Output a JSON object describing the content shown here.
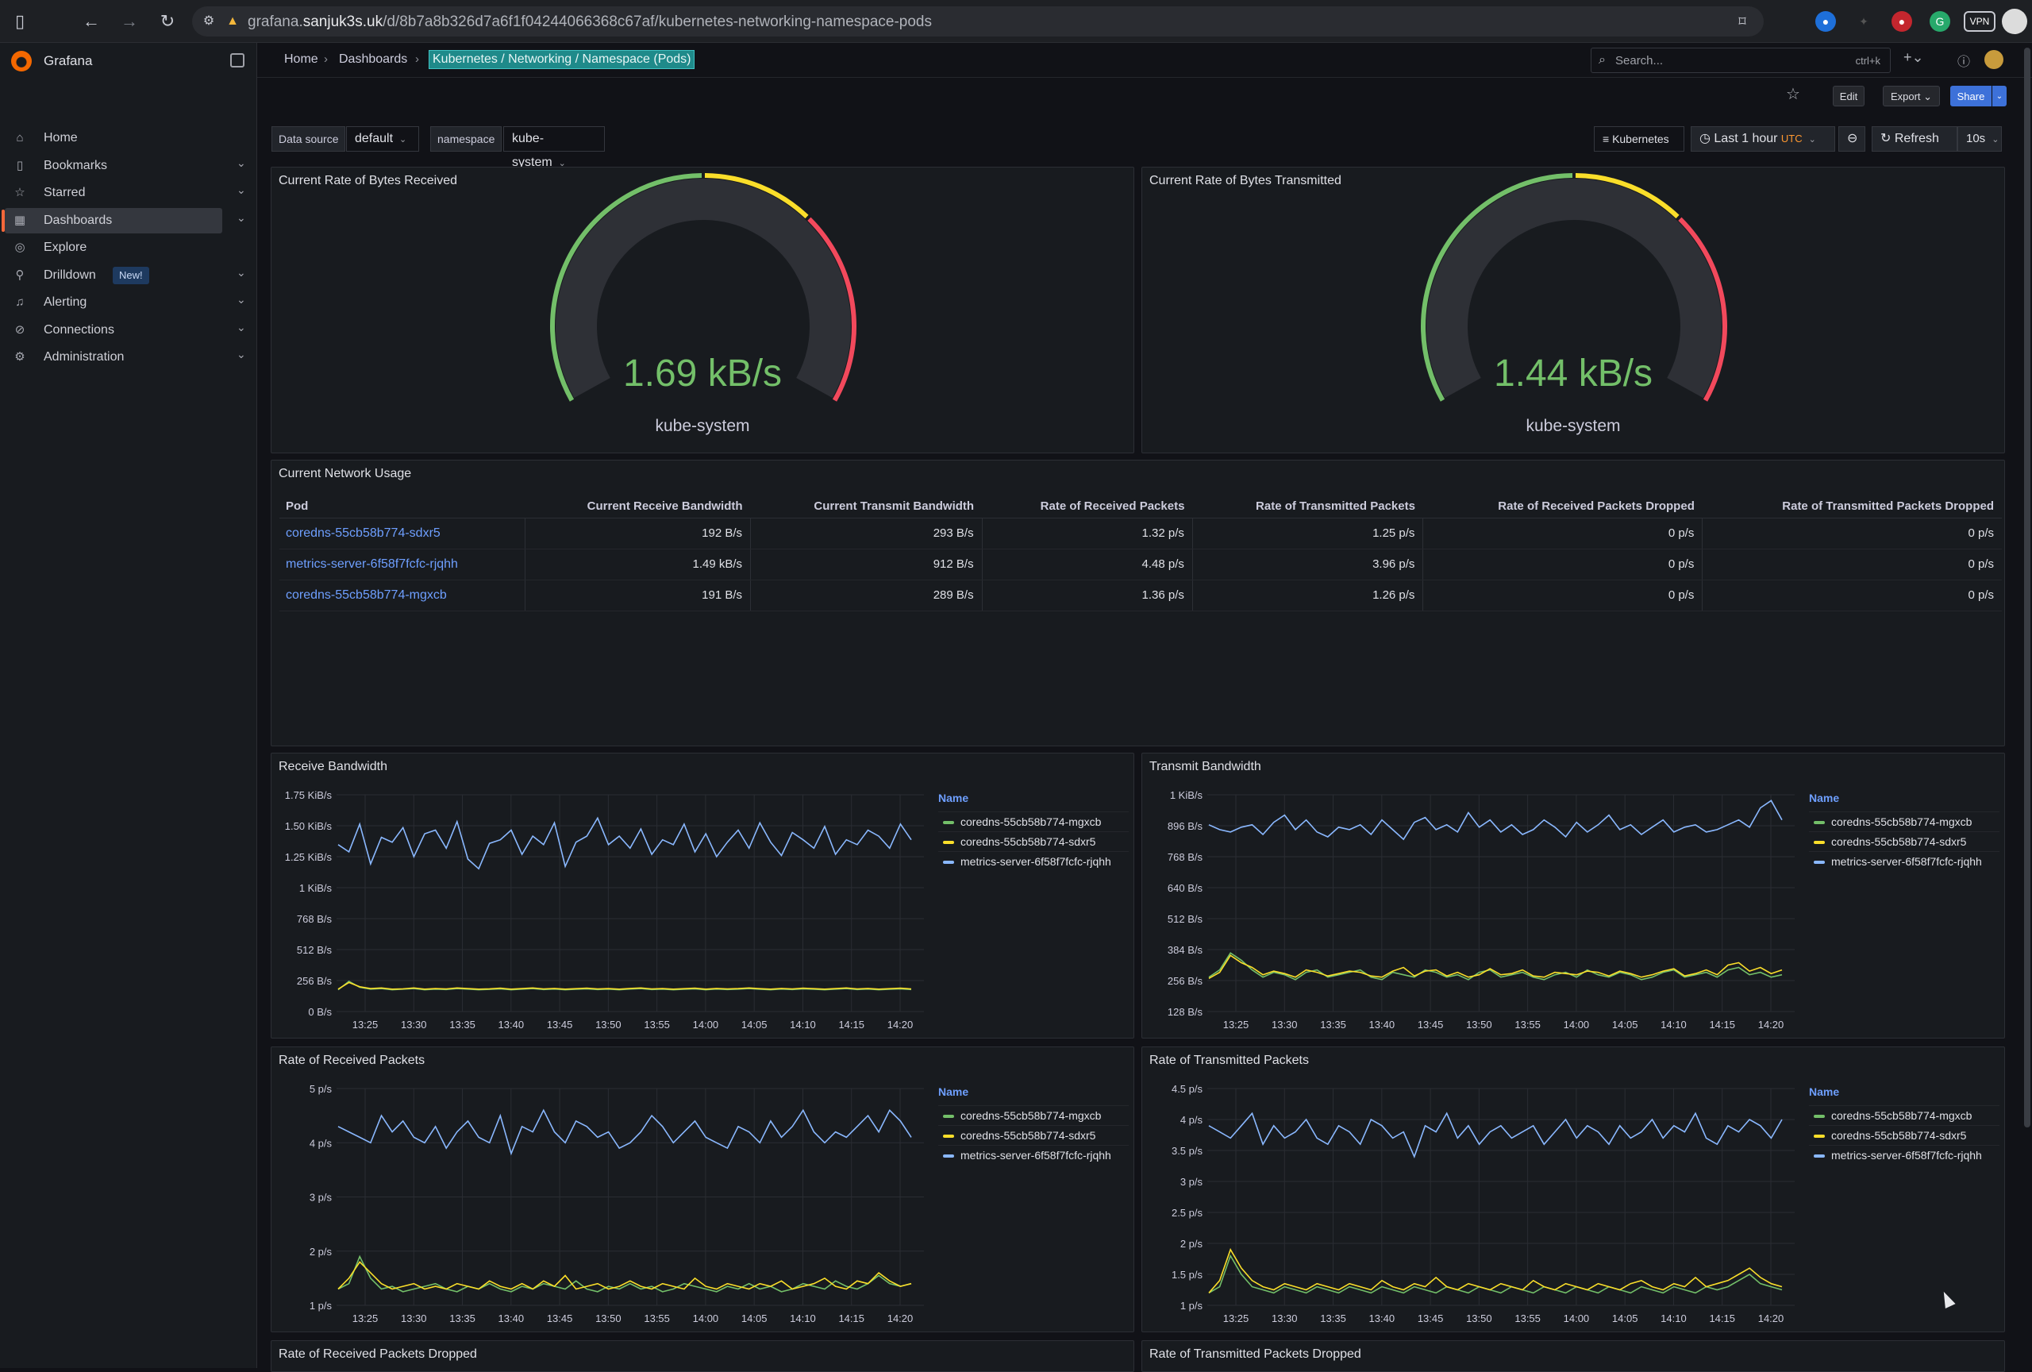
{
  "browser": {
    "url_prefix": "grafana.",
    "url_host": "sanjuk3s.uk",
    "url_path": "/d/8b7a8b326d7a6f1f04244066368c67af/kubernetes-networking-namespace-pods",
    "vpn_label": "VPN"
  },
  "sidebar": {
    "brand": "Grafana",
    "items": [
      {
        "label": "Home",
        "icon": "home-icon",
        "chev": false
      },
      {
        "label": "Bookmarks",
        "icon": "bookmark-icon",
        "chev": true
      },
      {
        "label": "Starred",
        "icon": "star-icon",
        "chev": true
      },
      {
        "label": "Dashboards",
        "icon": "grid-icon",
        "chev": true,
        "active": true
      },
      {
        "label": "Explore",
        "icon": "compass-icon",
        "chev": false
      },
      {
        "label": "Drilldown",
        "icon": "drilldown-icon",
        "chev": true,
        "badge": "New!"
      },
      {
        "label": "Alerting",
        "icon": "bell-icon",
        "chev": true
      },
      {
        "label": "Connections",
        "icon": "plug-icon",
        "chev": true
      },
      {
        "label": "Administration",
        "icon": "gear-icon",
        "chev": true
      }
    ]
  },
  "breadcrumb": {
    "home": "Home",
    "dashboards": "Dashboards",
    "current": "Kubernetes / Networking / Namespace (Pods)"
  },
  "search": {
    "placeholder": "Search...",
    "shortcut": "ctrl+k"
  },
  "toolbar": {
    "edit": "Edit",
    "export": "Export",
    "share": "Share"
  },
  "variables": {
    "datasource_label": "Data source",
    "datasource_value": "default",
    "namespace_label": "namespace",
    "namespace_value": "kube-system",
    "link_label": "Kubernetes",
    "time_range": "Last 1 hour",
    "tz": "UTC",
    "refresh_label": "Refresh",
    "refresh_interval": "10s"
  },
  "colors": {
    "green": "#73bf69",
    "yellow": "#fade2a",
    "blue": "#8ab8ff",
    "red": "#f2495c"
  },
  "gauges": [
    {
      "title": "Current Rate of Bytes Received",
      "value": "1.69 kB/s",
      "label": "kube-system"
    },
    {
      "title": "Current Rate of Bytes Transmitted",
      "value": "1.44 kB/s",
      "label": "kube-system"
    }
  ],
  "usage_table": {
    "title": "Current Network Usage",
    "headers": [
      "Pod",
      "Current Receive Bandwidth",
      "Current Transmit Bandwidth",
      "Rate of Received Packets",
      "Rate of Transmitted Packets",
      "Rate of Received Packets Dropped",
      "Rate of Transmitted Packets Dropped"
    ],
    "rows": [
      [
        "coredns-55cb58b774-sdxr5",
        "192 B/s",
        "293 B/s",
        "1.32 p/s",
        "1.25 p/s",
        "0 p/s",
        "0 p/s"
      ],
      [
        "metrics-server-6f58f7fcfc-rjqhh",
        "1.49 kB/s",
        "912 B/s",
        "4.48 p/s",
        "3.96 p/s",
        "0 p/s",
        "0 p/s"
      ],
      [
        "coredns-55cb58b774-mgxcb",
        "191 B/s",
        "289 B/s",
        "1.36 p/s",
        "1.26 p/s",
        "0 p/s",
        "0 p/s"
      ]
    ]
  },
  "legend": {
    "header": "Name",
    "series": [
      "coredns-55cb58b774-mgxcb",
      "coredns-55cb58b774-sdxr5",
      "metrics-server-6f58f7fcfc-rjqhh"
    ]
  },
  "chart_data": [
    {
      "type": "line",
      "title": "Receive Bandwidth",
      "x_ticks": [
        "13:25",
        "13:30",
        "13:35",
        "13:40",
        "13:45",
        "13:50",
        "13:55",
        "14:00",
        "14:05",
        "14:10",
        "14:15",
        "14:20"
      ],
      "y_ticks": [
        "0 B/s",
        "256 B/s",
        "512 B/s",
        "768 B/s",
        "1 KiB/s",
        "1.25 KiB/s",
        "1.50 KiB/s",
        "1.75 KiB/s"
      ],
      "ylim": [
        0,
        1792
      ],
      "series": [
        {
          "name": "coredns-55cb58b774-mgxcb",
          "color": "#73bf69",
          "values": [
            180,
            250,
            200,
            185,
            190,
            180,
            185,
            190,
            180,
            185,
            182,
            190,
            185,
            180,
            183,
            188,
            180,
            185,
            190,
            182,
            186,
            180,
            184,
            188,
            182,
            185,
            180,
            186,
            190,
            182,
            185,
            180,
            184,
            188,
            180,
            186,
            182,
            185,
            190,
            184,
            180,
            186,
            182,
            188,
            184,
            180,
            185,
            190,
            182,
            186,
            180,
            184,
            188,
            182
          ]
        },
        {
          "name": "coredns-55cb58b774-sdxr5",
          "color": "#fade2a",
          "values": [
            185,
            240,
            205,
            190,
            195,
            185,
            188,
            195,
            185,
            190,
            187,
            195,
            190,
            185,
            188,
            193,
            185,
            190,
            195,
            187,
            191,
            185,
            189,
            193,
            187,
            190,
            185,
            191,
            195,
            187,
            190,
            185,
            189,
            193,
            185,
            191,
            187,
            190,
            195,
            189,
            185,
            191,
            187,
            193,
            189,
            185,
            190,
            195,
            187,
            191,
            185,
            189,
            193,
            187
          ]
        },
        {
          "name": "metrics-server-6f58f7fcfc-rjqhh",
          "color": "#8ab8ff",
          "values": [
            1380,
            1320,
            1550,
            1220,
            1440,
            1400,
            1520,
            1280,
            1470,
            1500,
            1350,
            1570,
            1260,
            1180,
            1390,
            1420,
            1500,
            1300,
            1450,
            1380,
            1560,
            1200,
            1400,
            1450,
            1600,
            1380,
            1450,
            1350,
            1510,
            1300,
            1420,
            1380,
            1550,
            1320,
            1470,
            1280,
            1400,
            1500,
            1350,
            1560,
            1400,
            1290,
            1480,
            1420,
            1350,
            1530,
            1300,
            1420,
            1380,
            1500,
            1450,
            1350,
            1550,
            1420
          ]
        }
      ]
    },
    {
      "type": "line",
      "title": "Transmit Bandwidth",
      "x_ticks": [
        "13:25",
        "13:30",
        "13:35",
        "13:40",
        "13:45",
        "13:50",
        "13:55",
        "14:00",
        "14:05",
        "14:10",
        "14:15",
        "14:20"
      ],
      "y_ticks": [
        "128 B/s",
        "256 B/s",
        "384 B/s",
        "512 B/s",
        "640 B/s",
        "768 B/s",
        "896 B/s",
        "1 KiB/s"
      ],
      "ylim": [
        128,
        1024
      ],
      "series": [
        {
          "name": "coredns-55cb58b774-mgxcb",
          "color": "#73bf69",
          "values": [
            270,
            300,
            370,
            340,
            300,
            270,
            290,
            280,
            260,
            290,
            300,
            270,
            280,
            290,
            300,
            270,
            260,
            290,
            280,
            270,
            300,
            290,
            270,
            280,
            260,
            290,
            300,
            270,
            280,
            290,
            270,
            260,
            280,
            290,
            270,
            300,
            280,
            270,
            290,
            280,
            260,
            270,
            290,
            300,
            270,
            280,
            290,
            270,
            300,
            310,
            280,
            290,
            270,
            280
          ]
        },
        {
          "name": "coredns-55cb58b774-sdxr5",
          "color": "#fade2a",
          "values": [
            265,
            290,
            360,
            330,
            310,
            280,
            295,
            285,
            270,
            300,
            290,
            275,
            285,
            295,
            290,
            275,
            270,
            295,
            310,
            275,
            295,
            300,
            275,
            290,
            270,
            280,
            305,
            280,
            285,
            300,
            275,
            270,
            290,
            285,
            280,
            295,
            290,
            275,
            295,
            285,
            270,
            280,
            295,
            305,
            275,
            285,
            300,
            280,
            320,
            330,
            295,
            310,
            285,
            300
          ]
        },
        {
          "name": "metrics-server-6f58f7fcfc-rjqhh",
          "color": "#8ab8ff",
          "values": [
            900,
            880,
            870,
            890,
            900,
            860,
            910,
            940,
            880,
            920,
            870,
            850,
            890,
            880,
            900,
            860,
            920,
            880,
            840,
            910,
            930,
            880,
            900,
            870,
            950,
            890,
            920,
            870,
            900,
            860,
            880,
            920,
            890,
            850,
            910,
            870,
            900,
            940,
            880,
            900,
            860,
            890,
            920,
            870,
            890,
            900,
            870,
            880,
            900,
            920,
            890,
            970,
            1000,
            920
          ]
        }
      ]
    },
    {
      "type": "line",
      "title": "Rate of Received Packets",
      "x_ticks": [
        "13:25",
        "13:30",
        "13:35",
        "13:40",
        "13:45",
        "13:50",
        "13:55",
        "14:00",
        "14:05",
        "14:10",
        "14:15",
        "14:20"
      ],
      "y_ticks": [
        "1 p/s",
        "2 p/s",
        "3 p/s",
        "4 p/s",
        "5 p/s"
      ],
      "ylim": [
        1,
        5
      ],
      "series": [
        {
          "name": "coredns-55cb58b774-mgxcb",
          "color": "#73bf69",
          "values": [
            1.3,
            1.4,
            1.9,
            1.5,
            1.3,
            1.35,
            1.25,
            1.3,
            1.35,
            1.4,
            1.3,
            1.25,
            1.35,
            1.3,
            1.4,
            1.3,
            1.25,
            1.35,
            1.3,
            1.4,
            1.35,
            1.3,
            1.45,
            1.3,
            1.25,
            1.35,
            1.3,
            1.4,
            1.3,
            1.35,
            1.25,
            1.3,
            1.4,
            1.35,
            1.3,
            1.25,
            1.35,
            1.3,
            1.4,
            1.3,
            1.35,
            1.25,
            1.3,
            1.4,
            1.35,
            1.3,
            1.45,
            1.35,
            1.3,
            1.4,
            1.55,
            1.4,
            1.35,
            1.4
          ]
        },
        {
          "name": "coredns-55cb58b774-sdxr5",
          "color": "#fade2a",
          "values": [
            1.3,
            1.5,
            1.8,
            1.6,
            1.4,
            1.3,
            1.35,
            1.4,
            1.3,
            1.35,
            1.3,
            1.4,
            1.35,
            1.3,
            1.45,
            1.35,
            1.3,
            1.4,
            1.3,
            1.45,
            1.35,
            1.55,
            1.3,
            1.35,
            1.4,
            1.3,
            1.35,
            1.45,
            1.35,
            1.3,
            1.4,
            1.35,
            1.3,
            1.5,
            1.35,
            1.3,
            1.4,
            1.35,
            1.3,
            1.4,
            1.35,
            1.45,
            1.3,
            1.35,
            1.4,
            1.5,
            1.35,
            1.3,
            1.45,
            1.4,
            1.6,
            1.45,
            1.35,
            1.4
          ]
        },
        {
          "name": "metrics-server-6f58f7fcfc-rjqhh",
          "color": "#8ab8ff",
          "values": [
            4.3,
            4.2,
            4.1,
            4.0,
            4.5,
            4.2,
            4.4,
            4.1,
            4.0,
            4.3,
            3.9,
            4.2,
            4.4,
            4.1,
            4.0,
            4.5,
            3.8,
            4.3,
            4.2,
            4.6,
            4.2,
            4.0,
            4.4,
            4.3,
            4.1,
            4.2,
            3.9,
            4.0,
            4.2,
            4.5,
            4.3,
            4.0,
            4.2,
            4.4,
            4.1,
            4.0,
            3.9,
            4.3,
            4.2,
            4.0,
            4.4,
            4.1,
            4.3,
            4.6,
            4.2,
            4.0,
            4.2,
            4.1,
            4.3,
            4.5,
            4.2,
            4.6,
            4.4,
            4.1
          ]
        }
      ]
    },
    {
      "type": "line",
      "title": "Rate of Transmitted Packets",
      "x_ticks": [
        "13:25",
        "13:30",
        "13:35",
        "13:40",
        "13:45",
        "13:50",
        "13:55",
        "14:00",
        "14:05",
        "14:10",
        "14:15",
        "14:20"
      ],
      "y_ticks": [
        "1 p/s",
        "1.5 p/s",
        "2 p/s",
        "2.5 p/s",
        "3 p/s",
        "3.5 p/s",
        "4 p/s",
        "4.5 p/s"
      ],
      "ylim": [
        1,
        4.5
      ],
      "series": [
        {
          "name": "coredns-55cb58b774-mgxcb",
          "color": "#73bf69",
          "values": [
            1.2,
            1.3,
            1.8,
            1.5,
            1.3,
            1.25,
            1.2,
            1.3,
            1.25,
            1.2,
            1.3,
            1.25,
            1.2,
            1.3,
            1.25,
            1.2,
            1.3,
            1.25,
            1.2,
            1.3,
            1.25,
            1.2,
            1.3,
            1.25,
            1.2,
            1.3,
            1.25,
            1.2,
            1.3,
            1.25,
            1.2,
            1.3,
            1.25,
            1.2,
            1.3,
            1.25,
            1.2,
            1.3,
            1.25,
            1.2,
            1.3,
            1.25,
            1.2,
            1.3,
            1.25,
            1.2,
            1.3,
            1.25,
            1.3,
            1.4,
            1.5,
            1.35,
            1.3,
            1.25
          ]
        },
        {
          "name": "coredns-55cb58b774-sdxr5",
          "color": "#fade2a",
          "values": [
            1.2,
            1.4,
            1.9,
            1.6,
            1.4,
            1.3,
            1.25,
            1.35,
            1.3,
            1.25,
            1.35,
            1.3,
            1.25,
            1.35,
            1.3,
            1.25,
            1.4,
            1.3,
            1.25,
            1.35,
            1.3,
            1.45,
            1.3,
            1.25,
            1.35,
            1.3,
            1.25,
            1.35,
            1.3,
            1.25,
            1.4,
            1.3,
            1.25,
            1.35,
            1.3,
            1.25,
            1.35,
            1.3,
            1.25,
            1.35,
            1.4,
            1.3,
            1.25,
            1.35,
            1.3,
            1.45,
            1.3,
            1.35,
            1.4,
            1.5,
            1.6,
            1.45,
            1.35,
            1.3
          ]
        },
        {
          "name": "metrics-server-6f58f7fcfc-rjqhh",
          "color": "#8ab8ff",
          "values": [
            3.9,
            3.8,
            3.7,
            3.9,
            4.1,
            3.6,
            3.9,
            3.7,
            3.8,
            4.0,
            3.7,
            3.6,
            3.9,
            3.8,
            3.6,
            4.0,
            3.9,
            3.7,
            3.8,
            3.4,
            3.9,
            3.8,
            4.1,
            3.7,
            3.9,
            3.6,
            3.8,
            3.9,
            3.7,
            3.8,
            3.9,
            3.6,
            3.8,
            4.0,
            3.7,
            3.9,
            3.8,
            3.6,
            3.9,
            3.7,
            3.8,
            4.0,
            3.7,
            3.9,
            3.8,
            4.1,
            3.7,
            3.6,
            3.9,
            3.8,
            4.0,
            3.9,
            3.7,
            4.0
          ]
        }
      ]
    }
  ],
  "dropped_panels": [
    "Rate of Received Packets Dropped",
    "Rate of Transmitted Packets Dropped"
  ]
}
